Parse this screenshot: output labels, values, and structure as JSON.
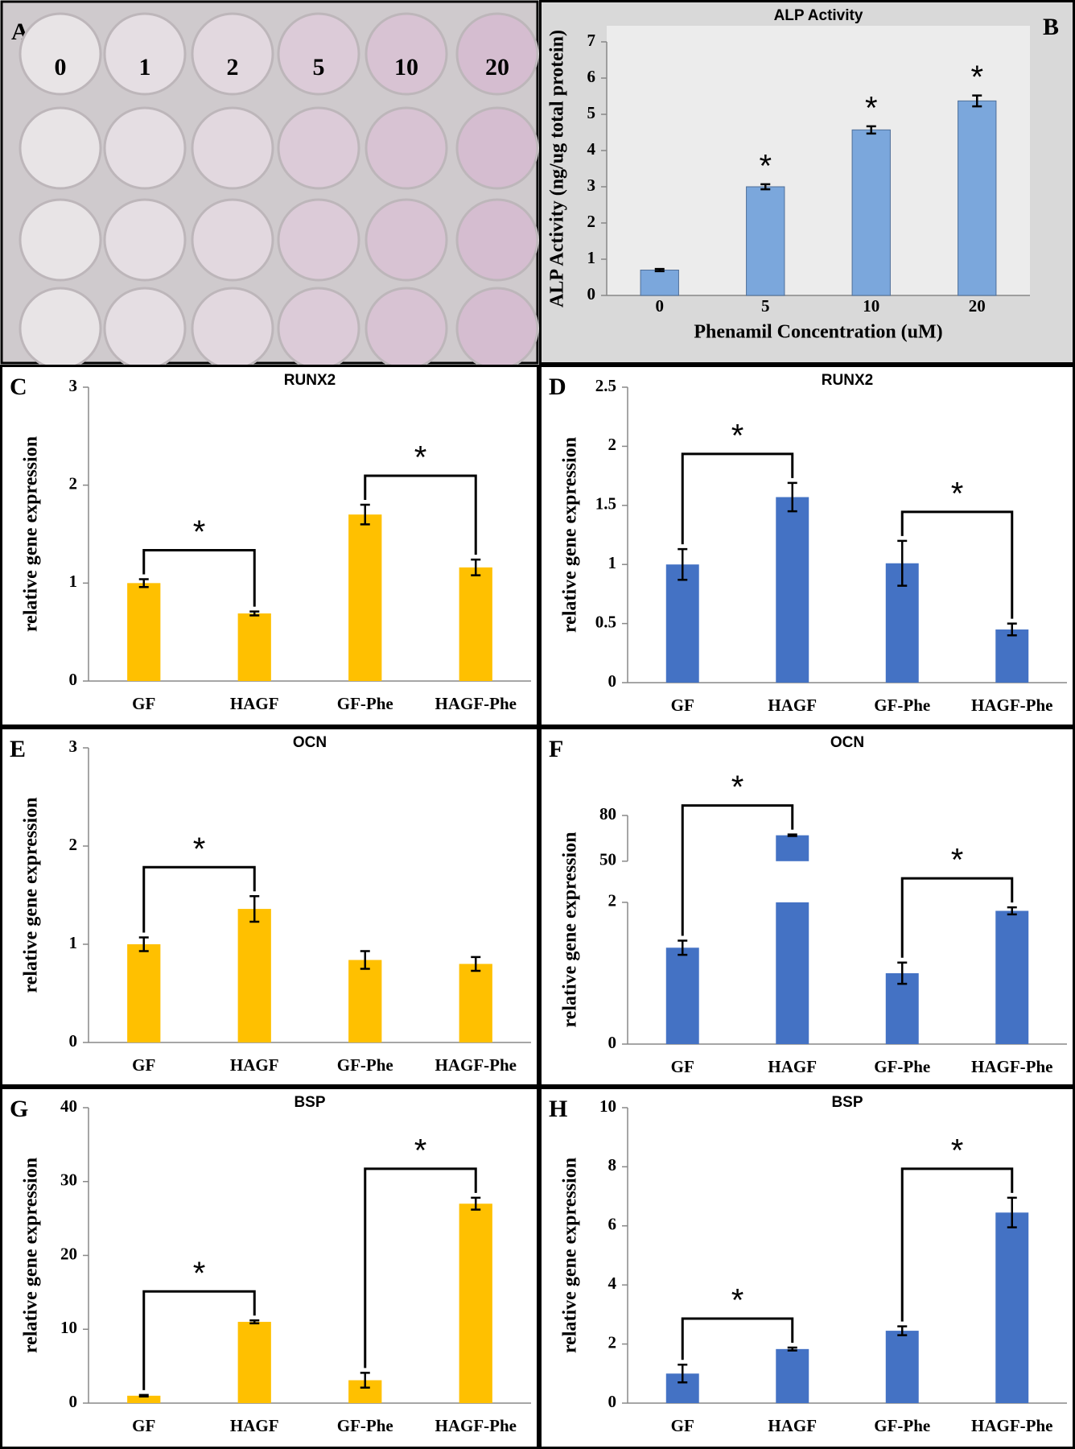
{
  "photo": {
    "panel": "A",
    "columns": [
      "0",
      "1",
      "2",
      "5",
      "10",
      "20"
    ]
  },
  "chart_data": [
    {
      "type": "bar",
      "panel": "B",
      "title": "ALP Activity",
      "y_label": "ALP Activity (ng/ug total protein)",
      "x_label": "Phenamil Concentration (uM)",
      "categories": [
        "0",
        "5",
        "10",
        "20"
      ],
      "values": [
        0.7,
        3.0,
        4.57,
        5.37
      ],
      "errors": [
        0.03,
        0.07,
        0.1,
        0.15
      ],
      "color": "#7ba7dc",
      "ylim": [
        0,
        7
      ],
      "yticks": [
        0,
        1,
        2,
        3,
        4,
        5,
        6,
        7
      ],
      "markers": [
        {
          "at": 1,
          "label": "*"
        },
        {
          "at": 2,
          "label": "*"
        },
        {
          "at": 3,
          "label": "*"
        }
      ]
    },
    {
      "type": "bar",
      "panel": "C",
      "title": "RUNX2",
      "y_label": "relative gene expression",
      "categories": [
        "GF",
        "HAGF",
        "GF-Phe",
        "HAGF-Phe"
      ],
      "values": [
        1.0,
        0.69,
        1.7,
        1.16
      ],
      "errors": [
        0.04,
        0.02,
        0.1,
        0.08
      ],
      "color": "#ffc000",
      "ylim": [
        0,
        3
      ],
      "yticks": [
        0,
        1,
        2,
        3
      ],
      "brackets": [
        {
          "from": 0,
          "to": 1,
          "label": "*"
        },
        {
          "from": 2,
          "to": 3,
          "label": "*"
        }
      ]
    },
    {
      "type": "bar",
      "panel": "D",
      "title": "RUNX2",
      "y_label": "relative gene expression",
      "categories": [
        "GF",
        "HAGF",
        "GF-Phe",
        "HAGF-Phe"
      ],
      "values": [
        1.0,
        1.57,
        1.01,
        0.45
      ],
      "errors": [
        0.13,
        0.12,
        0.19,
        0.05
      ],
      "color": "#4472c4",
      "ylim": [
        0,
        2.5
      ],
      "yticks": [
        0,
        0.5,
        1,
        1.5,
        2,
        2.5
      ],
      "brackets": [
        {
          "from": 0,
          "to": 1,
          "label": "*"
        },
        {
          "from": 2,
          "to": 3,
          "label": "*"
        }
      ]
    },
    {
      "type": "bar",
      "panel": "E",
      "title": "OCN",
      "y_label": "relative gene expression",
      "categories": [
        "GF",
        "HAGF",
        "GF-Phe",
        "HAGF-Phe"
      ],
      "values": [
        1.0,
        1.36,
        0.84,
        0.8
      ],
      "errors": [
        0.07,
        0.13,
        0.09,
        0.07
      ],
      "color": "#ffc000",
      "ylim": [
        0,
        3
      ],
      "yticks": [
        0,
        1,
        2,
        3
      ],
      "brackets": [
        {
          "from": 0,
          "to": 1,
          "label": "*"
        }
      ]
    },
    {
      "type": "bar",
      "panel": "F",
      "title": "OCN",
      "y_label": "relative gene expression",
      "categories": [
        "GF",
        "HAGF",
        "GF-Phe",
        "HAGF-Phe"
      ],
      "values": [
        1.36,
        67,
        1.0,
        1.88
      ],
      "errors": [
        0.1,
        0.5,
        0.15,
        0.05
      ],
      "color": "#4472c4",
      "ylim": [
        0,
        80
      ],
      "ybreak": [
        2,
        50
      ],
      "yticks": [
        0,
        2,
        50,
        80
      ],
      "brackets": [
        {
          "from": 0,
          "to": 1,
          "label": "*"
        },
        {
          "from": 2,
          "to": 3,
          "label": "*"
        }
      ]
    },
    {
      "type": "bar",
      "panel": "G",
      "title": "BSP",
      "y_label": "relative gene expression",
      "categories": [
        "GF",
        "HAGF",
        "GF-Phe",
        "HAGF-Phe"
      ],
      "values": [
        1.0,
        11.0,
        3.1,
        27.0
      ],
      "errors": [
        0.1,
        0.2,
        1.0,
        0.8
      ],
      "color": "#ffc000",
      "ylim": [
        0,
        40
      ],
      "yticks": [
        0,
        10,
        20,
        30,
        40
      ],
      "brackets": [
        {
          "from": 0,
          "to": 1,
          "label": "*"
        },
        {
          "from": 2,
          "to": 3,
          "label": "*"
        }
      ]
    },
    {
      "type": "bar",
      "panel": "H",
      "title": "BSP",
      "y_label": "relative gene expression",
      "categories": [
        "GF",
        "HAGF",
        "GF-Phe",
        "HAGF-Phe"
      ],
      "values": [
        1.0,
        1.83,
        2.45,
        6.45
      ],
      "errors": [
        0.3,
        0.05,
        0.15,
        0.5
      ],
      "color": "#4472c4",
      "ylim": [
        0,
        10
      ],
      "yticks": [
        0,
        2,
        4,
        6,
        8,
        10
      ],
      "brackets": [
        {
          "from": 0,
          "to": 1,
          "label": "*"
        },
        {
          "from": 2,
          "to": 3,
          "label": "*"
        }
      ]
    }
  ]
}
